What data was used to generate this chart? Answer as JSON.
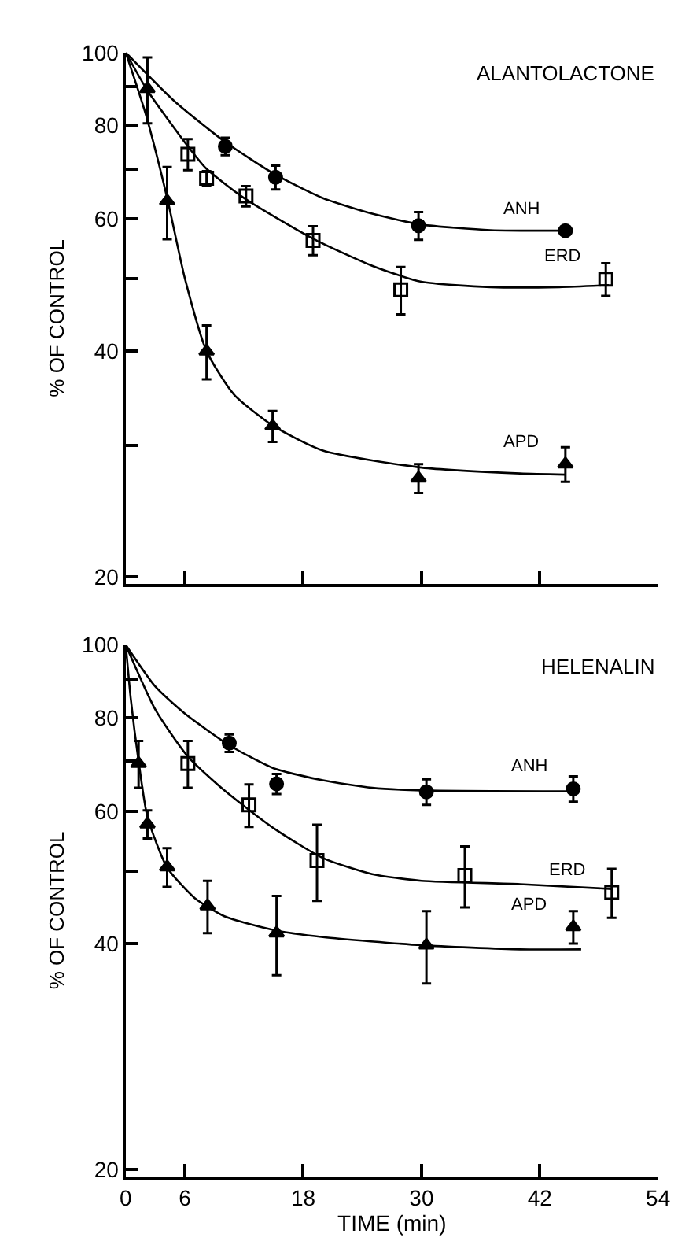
{
  "chart_data": [
    {
      "type": "scatter",
      "title": "ALANTOLACTONE",
      "ylabel": "% OF CONTROL",
      "log": "y",
      "grid": false,
      "legend": false,
      "tick_labels": "y",
      "xlim": [
        0,
        54
      ],
      "xticks": [
        {
          "value": 0,
          "label": null
        },
        {
          "value": 6,
          "label": null
        },
        {
          "value": 18,
          "label": null
        },
        {
          "value": 30,
          "label": null
        },
        {
          "value": 42,
          "label": null
        },
        {
          "value": 54,
          "label": null
        }
      ],
      "ylim": [
        19.6,
        100
      ],
      "yticks": [
        20,
        {
          "value": 30,
          "label": null
        },
        40,
        {
          "value": 50,
          "label": null
        },
        60,
        {
          "value": 70,
          "label": null
        },
        80,
        {
          "value": 90,
          "label": null
        },
        100
      ],
      "series": [
        {
          "type": "line",
          "color": "#000000",
          "marker": "none",
          "x": [
            0,
            5,
            10.1,
            15,
            20,
            25,
            30,
            37,
            44.6
          ],
          "values": [
            100,
            86,
            76,
            69,
            64,
            61,
            59,
            58,
            57.9
          ]
        },
        {
          "type": "line",
          "color": "#000000",
          "marker": "none",
          "x": [
            0,
            2.2,
            6.3,
            8.2,
            12,
            19,
            25,
            30,
            37,
            44,
            49
          ],
          "values": [
            100,
            89,
            75,
            70,
            64,
            56.5,
            52,
            49.5,
            48.7,
            48.7,
            49
          ]
        },
        {
          "type": "line",
          "color": "#000000",
          "marker": "none",
          "x": [
            0,
            2,
            4.2,
            6,
            8.2,
            11,
            15,
            20,
            30,
            40,
            44.6
          ],
          "values": [
            100,
            83,
            64,
            50,
            40,
            35,
            31.8,
            29.5,
            28,
            27.5,
            27.4
          ]
        },
        {
          "name": "ANH",
          "color": "#000000",
          "marker": "circle",
          "x": [
            10.1,
            15.2,
            29.7,
            44.6
          ],
          "values": [
            75.0,
            68.2,
            58.8,
            57.9
          ],
          "errors": [
            2,
            2.5,
            2.5,
            null
          ]
        },
        {
          "name": "ERD",
          "color": "#000000",
          "marker": "square",
          "x": [
            6.3,
            8.2,
            12.2,
            19.0,
            27.9,
            48.7
          ],
          "values": [
            73.2,
            68.0,
            64.4,
            56.2,
            48.3,
            49.9
          ],
          "errors": [
            3.5,
            1.5,
            2,
            2.5,
            3.5,
            2.5
          ]
        },
        {
          "name": "APD",
          "color": "#000000",
          "marker": "triangle",
          "x": [
            2.2,
            4.2,
            8.2,
            14.9,
            29.7,
            44.6
          ],
          "values": [
            89.5,
            63.4,
            40.0,
            31.8,
            27.1,
            28.3
          ],
          "errors": [
            9,
            7,
            3.3,
            1.5,
            1.2,
            1.5
          ]
        }
      ]
    },
    {
      "type": "scatter",
      "title": "HELENALIN",
      "ylabel": "% OF CONTROL",
      "xlabel": "TIME (min)",
      "log": "y",
      "grid": false,
      "legend": false,
      "xlim": [
        0,
        54
      ],
      "xticks": [
        0,
        6,
        18,
        30,
        42,
        54
      ],
      "ylim": [
        19.6,
        100
      ],
      "yticks": [
        20,
        40,
        {
          "value": 50,
          "label": null
        },
        60,
        {
          "value": 70,
          "label": null
        },
        80,
        {
          "value": 90,
          "label": null
        },
        100
      ],
      "series": [
        {
          "type": "line",
          "color": "#000000",
          "marker": "none",
          "x": [
            0,
            3,
            6,
            10.5,
            15,
            20,
            25,
            30,
            45.4
          ],
          "values": [
            100,
            88,
            81,
            73.5,
            68.5,
            66,
            64.5,
            64,
            63.8
          ]
        },
        {
          "type": "line",
          "color": "#000000",
          "marker": "none",
          "x": [
            0,
            3,
            6.3,
            10,
            15,
            20,
            25,
            30,
            40,
            49.3
          ],
          "values": [
            100,
            82,
            71,
            64,
            57,
            52,
            49.5,
            48.5,
            48,
            47.3
          ]
        },
        {
          "type": "line",
          "color": "#000000",
          "marker": "none",
          "x": [
            0,
            0.5,
            1.3,
            2.2,
            4.2,
            7,
            10,
            15,
            20,
            30,
            40,
            46.2
          ],
          "values": [
            100,
            85,
            70,
            59,
            50.5,
            46,
            43.5,
            41.7,
            40.8,
            39.8,
            39.3,
            39.3
          ]
        },
        {
          "name": "ANH",
          "color": "#000000",
          "marker": "circle",
          "x": [
            10.5,
            15.3,
            30.5,
            45.4
          ],
          "values": [
            74.0,
            65.3,
            63.7,
            64.3
          ],
          "errors": [
            2,
            2,
            2.5,
            2.5
          ]
        },
        {
          "name": "ERD",
          "color": "#000000",
          "marker": "square",
          "x": [
            6.3,
            12.5,
            19.4,
            34.4,
            49.3
          ],
          "values": [
            69.5,
            61.2,
            51.6,
            49.3,
            46.8
          ],
          "errors": [
            5,
            4,
            6,
            4.6,
            3.5
          ]
        },
        {
          "name": "APD",
          "color": "#000000",
          "marker": "triangle",
          "x": [
            1.3,
            2.2,
            4.2,
            8.3,
            15.3,
            30.5,
            45.4
          ],
          "values": [
            69.5,
            57.7,
            50.6,
            44.9,
            41.3,
            39.8,
            42.1
          ],
          "errors": [
            5,
            2.5,
            3,
            3.6,
            5,
            4.4,
            2.1
          ]
        }
      ]
    }
  ]
}
